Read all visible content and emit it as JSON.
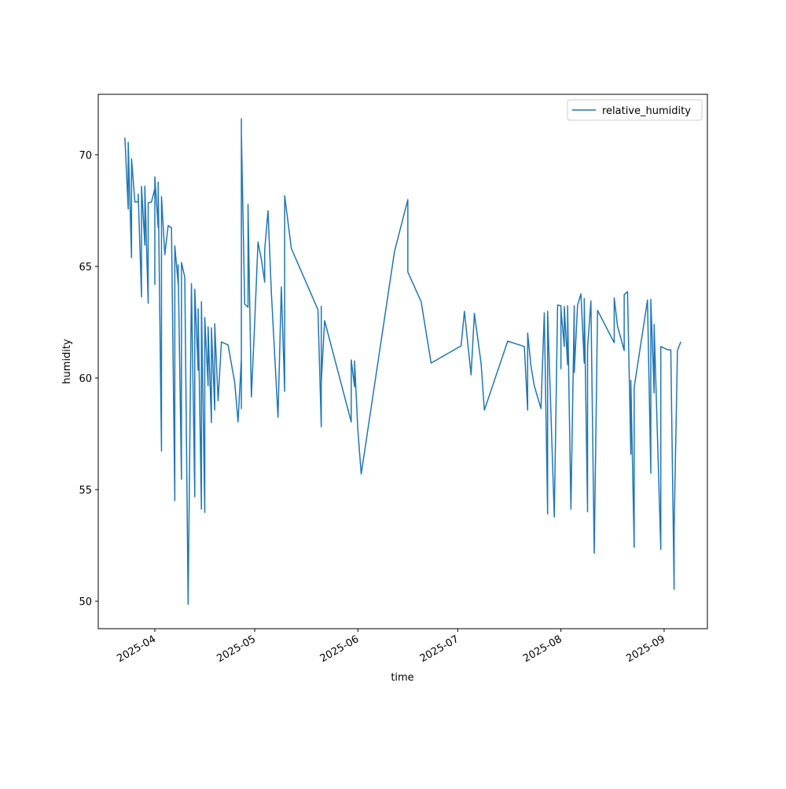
{
  "chart_data": {
    "type": "line",
    "x_label": "time",
    "y_label": "humidity",
    "x": [
      "2025-03-23",
      "2025-03-24",
      "2025-03-24",
      "2025-03-25",
      "2025-03-25",
      "2025-03-26",
      "2025-03-27",
      "2025-03-27",
      "2025-03-28",
      "2025-03-28",
      "2025-03-29",
      "2025-03-29",
      "2025-03-30",
      "2025-03-30",
      "2025-03-31",
      "2025-04-01",
      "2025-04-01",
      "2025-04-01",
      "2025-04-02",
      "2025-04-02",
      "2025-04-03",
      "2025-04-03",
      "2025-04-04",
      "2025-04-05",
      "2025-04-06",
      "2025-04-07",
      "2025-04-07",
      "2025-04-08",
      "2025-04-08",
      "2025-04-09",
      "2025-04-09",
      "2025-04-10",
      "2025-04-11",
      "2025-04-12",
      "2025-04-13",
      "2025-04-13",
      "2025-04-14",
      "2025-04-14",
      "2025-04-15",
      "2025-04-15",
      "2025-04-16",
      "2025-04-16",
      "2025-04-17",
      "2025-04-17",
      "2025-04-18",
      "2025-04-18",
      "2025-04-19",
      "2025-04-19",
      "2025-04-20",
      "2025-04-21",
      "2025-04-23",
      "2025-04-25",
      "2025-04-26",
      "2025-04-27",
      "2025-04-27",
      "2025-04-27",
      "2025-04-27",
      "2025-04-28",
      "2025-04-29",
      "2025-04-29",
      "2025-04-29",
      "2025-04-30",
      "2025-05-01",
      "2025-05-02",
      "2025-05-03",
      "2025-05-04",
      "2025-05-04",
      "2025-05-05",
      "2025-05-06",
      "2025-05-08",
      "2025-05-09",
      "2025-05-10",
      "2025-05-10",
      "2025-05-12",
      "2025-05-20",
      "2025-05-21",
      "2025-05-21",
      "2025-05-21",
      "2025-05-22",
      "2025-05-30",
      "2025-05-30",
      "2025-05-31",
      "2025-05-31",
      "2025-06-01",
      "2025-06-02",
      "2025-06-12",
      "2025-06-16",
      "2025-06-16",
      "2025-06-20",
      "2025-06-23",
      "2025-07-02",
      "2025-07-03",
      "2025-07-05",
      "2025-07-06",
      "2025-07-08",
      "2025-07-09",
      "2025-07-16",
      "2025-07-21",
      "2025-07-22",
      "2025-07-22",
      "2025-07-23",
      "2025-07-24",
      "2025-07-26",
      "2025-07-27",
      "2025-07-28",
      "2025-07-28",
      "2025-07-30",
      "2025-07-31",
      "2025-08-01",
      "2025-08-01",
      "2025-08-01",
      "2025-08-02",
      "2025-08-02",
      "2025-08-03",
      "2025-08-03",
      "2025-08-04",
      "2025-08-05",
      "2025-08-05",
      "2025-08-06",
      "2025-08-07",
      "2025-08-08",
      "2025-08-08",
      "2025-08-09",
      "2025-08-09",
      "2025-08-09",
      "2025-08-10",
      "2025-08-11",
      "2025-08-12",
      "2025-08-17",
      "2025-08-17",
      "2025-08-18",
      "2025-08-20",
      "2025-08-20",
      "2025-08-21",
      "2025-08-22",
      "2025-08-22",
      "2025-08-23",
      "2025-08-23",
      "2025-08-27",
      "2025-08-28",
      "2025-08-28",
      "2025-08-29",
      "2025-08-29",
      "2025-08-31",
      "2025-08-31",
      "2025-09-02",
      "2025-09-03",
      "2025-09-04",
      "2025-09-04",
      "2025-09-05",
      "2025-09-06"
    ],
    "series": [
      {
        "name": "relative_humidity",
        "color": "#1f77b4",
        "values": [
          70.77,
          67.57,
          70.56,
          65.39,
          69.82,
          67.89,
          67.89,
          68.24,
          63.63,
          68.59,
          65.95,
          68.59,
          63.35,
          67.85,
          67.89,
          68.49,
          64.19,
          69.01,
          66.73,
          68.77,
          56.73,
          68.13,
          65.53,
          66.83,
          66.73,
          54.51,
          65.92,
          64.23,
          65.07,
          55.46,
          65.18,
          64.51,
          49.86,
          64.23,
          54.68,
          63.98,
          60.35,
          63.1,
          54.12,
          63.42,
          53.98,
          62.71,
          59.65,
          62.29,
          58.0,
          62.25,
          58.56,
          62.43,
          58.98,
          61.62,
          61.48,
          59.79,
          58.03,
          60.88,
          58.63,
          71.62,
          70.99,
          63.31,
          63.17,
          67.78,
          67.61,
          59.15,
          62.5,
          66.09,
          65.32,
          64.3,
          65.74,
          67.5,
          63.84,
          58.24,
          64.08,
          59.4,
          68.17,
          65.81,
          63.06,
          57.82,
          63.21,
          59.82,
          62.57,
          58.03,
          60.81,
          59.61,
          60.77,
          57.64,
          55.7,
          65.67,
          67.99,
          64.75,
          63.42,
          60.67,
          61.44,
          62.99,
          60.14,
          62.89,
          60.67,
          58.56,
          61.65,
          61.41,
          58.56,
          62.01,
          60.53,
          59.65,
          58.63,
          62.92,
          53.91,
          62.99,
          53.77,
          63.27,
          63.24,
          60.42,
          63.1,
          61.41,
          63.2,
          60.6,
          63.24,
          54.12,
          63.24,
          60.25,
          63.27,
          63.77,
          60.67,
          63.56,
          54.01,
          61.3,
          61.37,
          63.45,
          52.15,
          63.03,
          61.58,
          63.59,
          62.32,
          61.23,
          63.73,
          63.87,
          56.58,
          59.89,
          52.42,
          59.58,
          63.49,
          55.74,
          63.52,
          59.33,
          62.4,
          52.32,
          61.41,
          61.27,
          61.27,
          50.53,
          53.17,
          61.23,
          61.62
        ]
      }
    ],
    "xlim": [
      "2025-03-15",
      "2025-09-14"
    ],
    "xticks": [
      {
        "value": "2025-04-01",
        "label": "2025-04"
      },
      {
        "value": "2025-05-01",
        "label": "2025-05"
      },
      {
        "value": "2025-06-01",
        "label": "2025-06"
      },
      {
        "value": "2025-07-01",
        "label": "2025-07"
      },
      {
        "value": "2025-08-01",
        "label": "2025-08"
      },
      {
        "value": "2025-09-01",
        "label": "2025-09"
      }
    ],
    "ylim": [
      48.77,
      72.71
    ],
    "yticks": [
      50,
      55,
      60,
      65,
      70
    ],
    "legend": "upper right"
  }
}
